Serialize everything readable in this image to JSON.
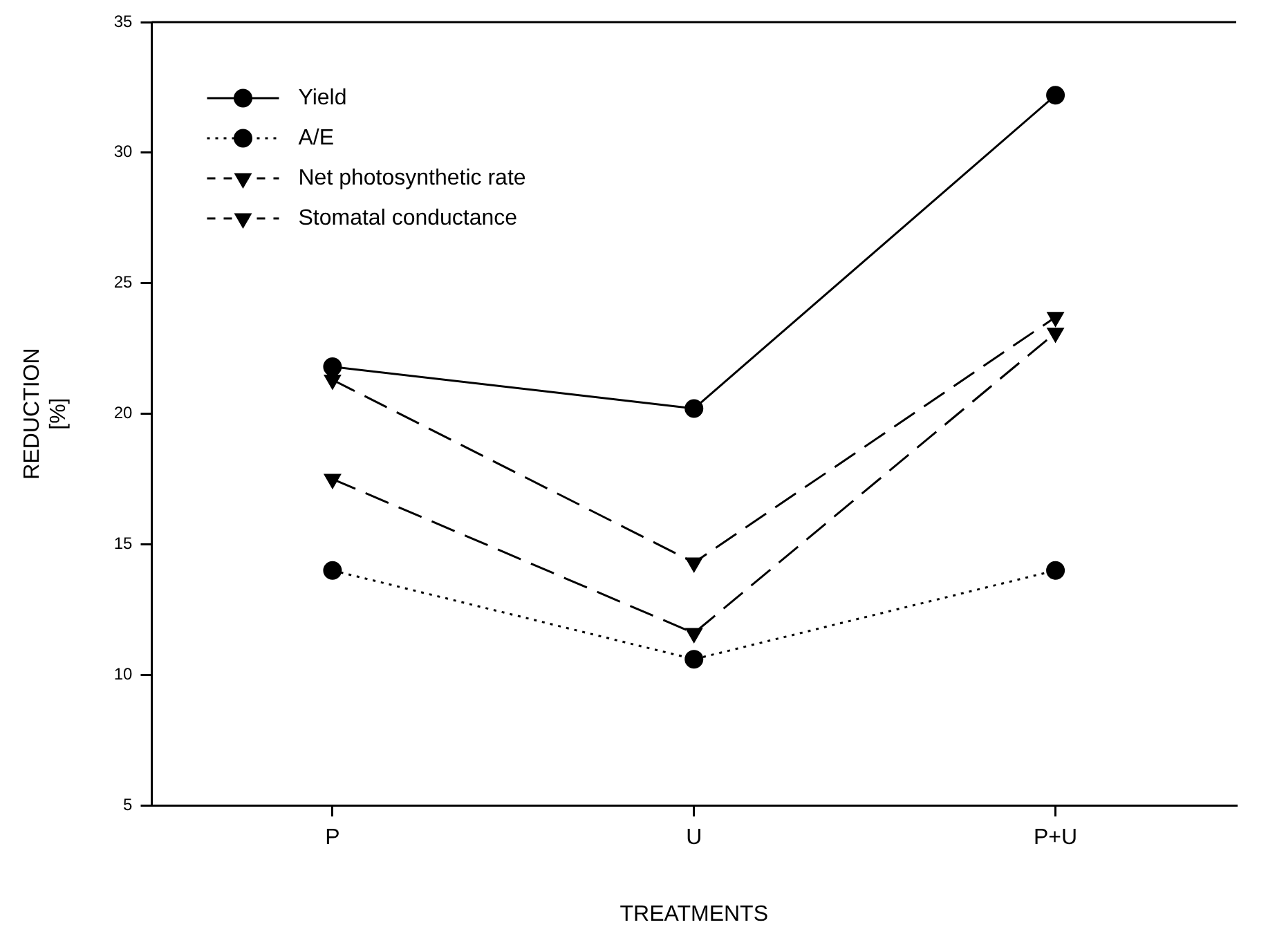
{
  "chart_data": {
    "type": "line",
    "xlabel": "TREATMENTS",
    "ylabel": "REDUCTION\n[%]",
    "categories": [
      "P",
      "U",
      "P+U"
    ],
    "ylim": [
      5,
      35
    ],
    "yticks": [
      5,
      10,
      15,
      20,
      25,
      30,
      35
    ],
    "grid": false,
    "legend": "top left",
    "series": [
      {
        "name": "Yield",
        "color": "#000000",
        "values": [
          21.8,
          20.2,
          32.2
        ],
        "marker": "circle",
        "line_style": "solid"
      },
      {
        "name": "A/E",
        "color": "#000000",
        "values": [
          14.0,
          10.6,
          14.0
        ],
        "marker": "circle",
        "line_style": "dotted"
      },
      {
        "name": "Net photosynthetic rate",
        "color": "#000000",
        "values": [
          17.5,
          11.6,
          23.1
        ],
        "marker": "triangle",
        "line_style": "dashed"
      },
      {
        "name": "Stomatal conductance",
        "color": "#000000",
        "values": [
          21.3,
          14.3,
          23.7
        ],
        "marker": "triangle",
        "line_style": "dashed"
      }
    ]
  }
}
